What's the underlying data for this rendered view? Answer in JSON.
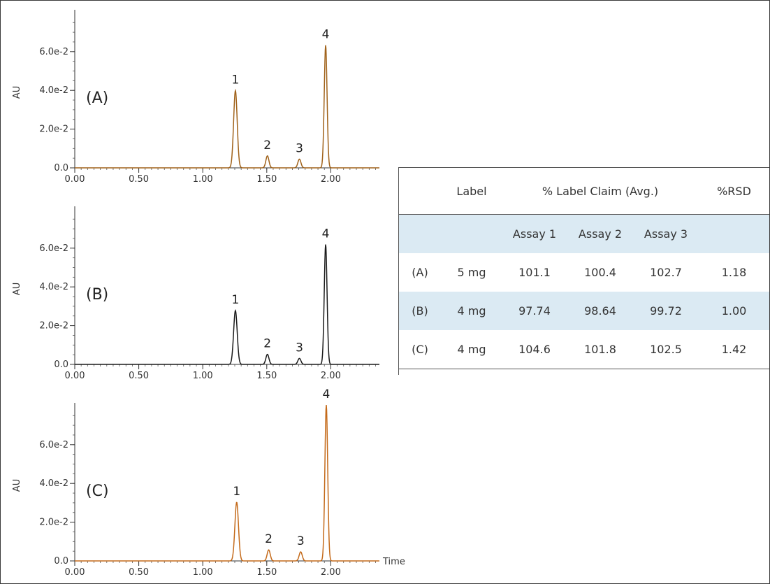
{
  "chart_data": [
    {
      "type": "line",
      "panel_label": "(A)",
      "ylabel": "AU",
      "xlabel": "",
      "x_ticks": [
        "0.00",
        "0.50",
        "1.00",
        "1.50",
        "2.00"
      ],
      "y_ticks": [
        "0.0",
        "2.0e-2",
        "4.0e-2",
        "6.0e-2"
      ],
      "xlim": [
        0.0,
        2.38
      ],
      "ylim": [
        0.0,
        0.0787
      ],
      "color": "#a0621a",
      "peaks": [
        {
          "label": "1",
          "rt": 1.255,
          "height": 0.0399,
          "width": 0.014
        },
        {
          "label": "2",
          "rt": 1.505,
          "height": 0.0062,
          "width": 0.012
        },
        {
          "label": "3",
          "rt": 1.755,
          "height": 0.0045,
          "width": 0.012
        },
        {
          "label": "4",
          "rt": 1.96,
          "height": 0.0633,
          "width": 0.011
        }
      ]
    },
    {
      "type": "line",
      "panel_label": "(B)",
      "ylabel": "AU",
      "xlabel": "",
      "x_ticks": [
        "0.00",
        "0.50",
        "1.00",
        "1.50",
        "2.00"
      ],
      "y_ticks": [
        "0.0",
        "2.0e-2",
        "4.0e-2",
        "6.0e-2"
      ],
      "xlim": [
        0.0,
        2.38
      ],
      "ylim": [
        0.0,
        0.0787
      ],
      "color": "#1a1a1a",
      "peaks": [
        {
          "label": "1",
          "rt": 1.255,
          "height": 0.0278,
          "width": 0.014
        },
        {
          "label": "2",
          "rt": 1.505,
          "height": 0.0052,
          "width": 0.012
        },
        {
          "label": "3",
          "rt": 1.755,
          "height": 0.0031,
          "width": 0.012
        },
        {
          "label": "4",
          "rt": 1.96,
          "height": 0.0619,
          "width": 0.011
        }
      ]
    },
    {
      "type": "line",
      "panel_label": "(C)",
      "ylabel": "AU",
      "xlabel": "Time",
      "x_ticks": [
        "0.00",
        "0.50",
        "1.00",
        "1.50",
        "2.00"
      ],
      "y_ticks": [
        "0.0",
        "2.0e-2",
        "4.0e-2",
        "6.0e-2"
      ],
      "xlim": [
        0.0,
        2.38
      ],
      "ylim": [
        0.0,
        0.0787
      ],
      "color": "#c46a1a",
      "peaks": [
        {
          "label": "1",
          "rt": 1.265,
          "height": 0.0303,
          "width": 0.014
        },
        {
          "label": "2",
          "rt": 1.515,
          "height": 0.0057,
          "width": 0.012
        },
        {
          "label": "3",
          "rt": 1.765,
          "height": 0.0047,
          "width": 0.012
        },
        {
          "label": "4",
          "rt": 1.965,
          "height": 0.0805,
          "width": 0.011
        }
      ]
    }
  ],
  "table": {
    "header": [
      "",
      "Label",
      "% Label Claim (Avg.)",
      "%RSD"
    ],
    "subheader": [
      "Assay 1",
      "Assay 2",
      "Assay 3"
    ],
    "rows": [
      [
        "(A)",
        "5 mg",
        "101.1",
        "100.4",
        "102.7",
        "1.18"
      ],
      [
        "(B)",
        "4 mg",
        "97.74",
        "98.64",
        "99.72",
        "1.00"
      ],
      [
        "(C)",
        "4 mg",
        "104.6",
        "101.8",
        "102.5",
        "1.42"
      ]
    ]
  }
}
